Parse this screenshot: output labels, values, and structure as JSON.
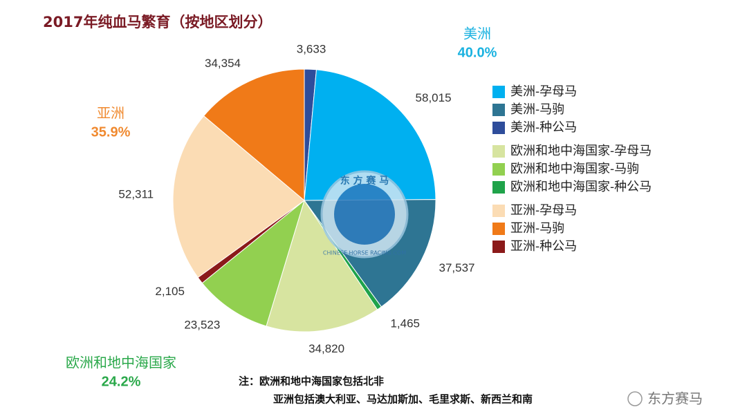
{
  "chart_data": {
    "type": "pie",
    "title": "2017年纯血马繁育（按地区划分）",
    "regions": [
      {
        "name": "美洲",
        "value": 40.0,
        "value_label": "40.0%",
        "color": "#1ab2e0"
      },
      {
        "name": "欧洲和地中海国家",
        "value": 24.2,
        "value_label": "24.2%",
        "color": "#2aa84a"
      },
      {
        "name": "亚洲",
        "value": 35.9,
        "value_label": "35.9%",
        "color": "#f08a30"
      }
    ],
    "series": [
      {
        "name": "美洲-孕母马",
        "color": "#00b0f0",
        "value": 58015,
        "value_label": "58,015"
      },
      {
        "name": "美洲-马驹",
        "color": "#2e7593",
        "value": 37537,
        "value_label": "37,537"
      },
      {
        "name": "美洲-种公马",
        "color": "#2e4d9b",
        "value": 3633,
        "value_label": "3,633"
      },
      {
        "name": "欧洲和地中海国家-孕母马",
        "color": "#d7e4a0",
        "value": 34820,
        "value_label": "34,820"
      },
      {
        "name": "欧洲和地中海国家-马驹",
        "color": "#92d050",
        "value": 23523,
        "value_label": "23,523"
      },
      {
        "name": "欧洲和地中海国家-种公马",
        "color": "#1fa34a",
        "value": 1465,
        "value_label": "1,465"
      },
      {
        "name": "亚洲-孕母马",
        "color": "#fbdcb4",
        "value": 52311,
        "value_label": "52,311"
      },
      {
        "name": "亚洲-马驹",
        "color": "#f07a18",
        "value": 34354,
        "value_label": "34,354"
      },
      {
        "name": "亚洲-种公马",
        "color": "#8b1a1a",
        "value": 2105,
        "value_label": "2,105"
      }
    ],
    "notes": [
      "注：欧洲和地中海国家包括北非",
      "亚洲包括澳大利亚、马达加斯加、毛里求斯、新西兰和南"
    ],
    "logo": {
      "top": "东 方 赛 马",
      "bottom": "CHINESE HORSE RACING.COM"
    },
    "watermark": "东方赛马"
  }
}
